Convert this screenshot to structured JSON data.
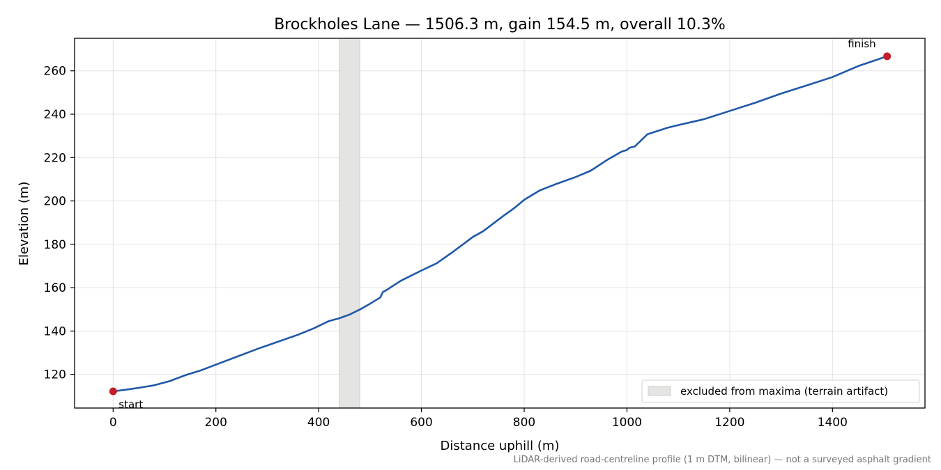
{
  "chart_data": {
    "type": "line",
    "title": "Brockholes Lane — 1506.3 m, gain 154.5 m, overall 10.3%",
    "xlabel": "Distance uphill (m)",
    "ylabel": "Elevation (m)",
    "xlim": [
      -75,
      1580
    ],
    "ylim": [
      104.5,
      275
    ],
    "xticks": [
      0,
      200,
      400,
      600,
      800,
      1000,
      1200,
      1400
    ],
    "yticks": [
      120,
      140,
      160,
      180,
      200,
      220,
      240,
      260
    ],
    "grid": true,
    "legend": {
      "placement": "lower-right",
      "entries": [
        {
          "label": "excluded from maxima (terrain artifact)",
          "color": "#e4e4e2"
        }
      ]
    },
    "excluded_region": {
      "x_start": 440,
      "x_end": 480
    },
    "series": [
      {
        "color": "#2058a8",
        "x": [
          0,
          20,
          50,
          80,
          110,
          140,
          170,
          200,
          240,
          280,
          320,
          360,
          390,
          420,
          440,
          460,
          480,
          500,
          520,
          525,
          530,
          560,
          600,
          630,
          660,
          690,
          700,
          720,
          760,
          780,
          800,
          830,
          860,
          900,
          930,
          960,
          990,
          1000,
          1005,
          1015,
          1030,
          1040,
          1060,
          1080,
          1100,
          1150,
          1200,
          1250,
          1300,
          1350,
          1400,
          1450,
          1506.3
        ],
        "y": [
          112.2,
          112.8,
          113.8,
          115.0,
          116.9,
          119.6,
          121.8,
          124.5,
          128.1,
          131.7,
          135.0,
          138.3,
          141.2,
          144.6,
          145.9,
          147.6,
          149.9,
          152.6,
          155.5,
          158.0,
          158.6,
          163.2,
          167.9,
          171.3,
          176.3,
          181.6,
          183.4,
          186.0,
          193.2,
          196.6,
          200.5,
          204.8,
          207.6,
          211.0,
          214.0,
          218.7,
          222.8,
          223.5,
          224.5,
          225.1,
          228.5,
          230.8,
          232.3,
          233.8,
          235.0,
          237.7,
          241.5,
          245.3,
          249.5,
          253.3,
          257.1,
          262.2,
          266.7
        ]
      }
    ],
    "markers": [
      {
        "x": 0,
        "y": 112.2,
        "label": "start",
        "color": "#c41e2a"
      },
      {
        "x": 1506.3,
        "y": 266.7,
        "label": "finish",
        "color": "#c41e2a"
      }
    ],
    "footnote": "LiDAR-derived road-centreline profile (1 m DTM, bilinear) — not a surveyed asphalt gradient"
  }
}
